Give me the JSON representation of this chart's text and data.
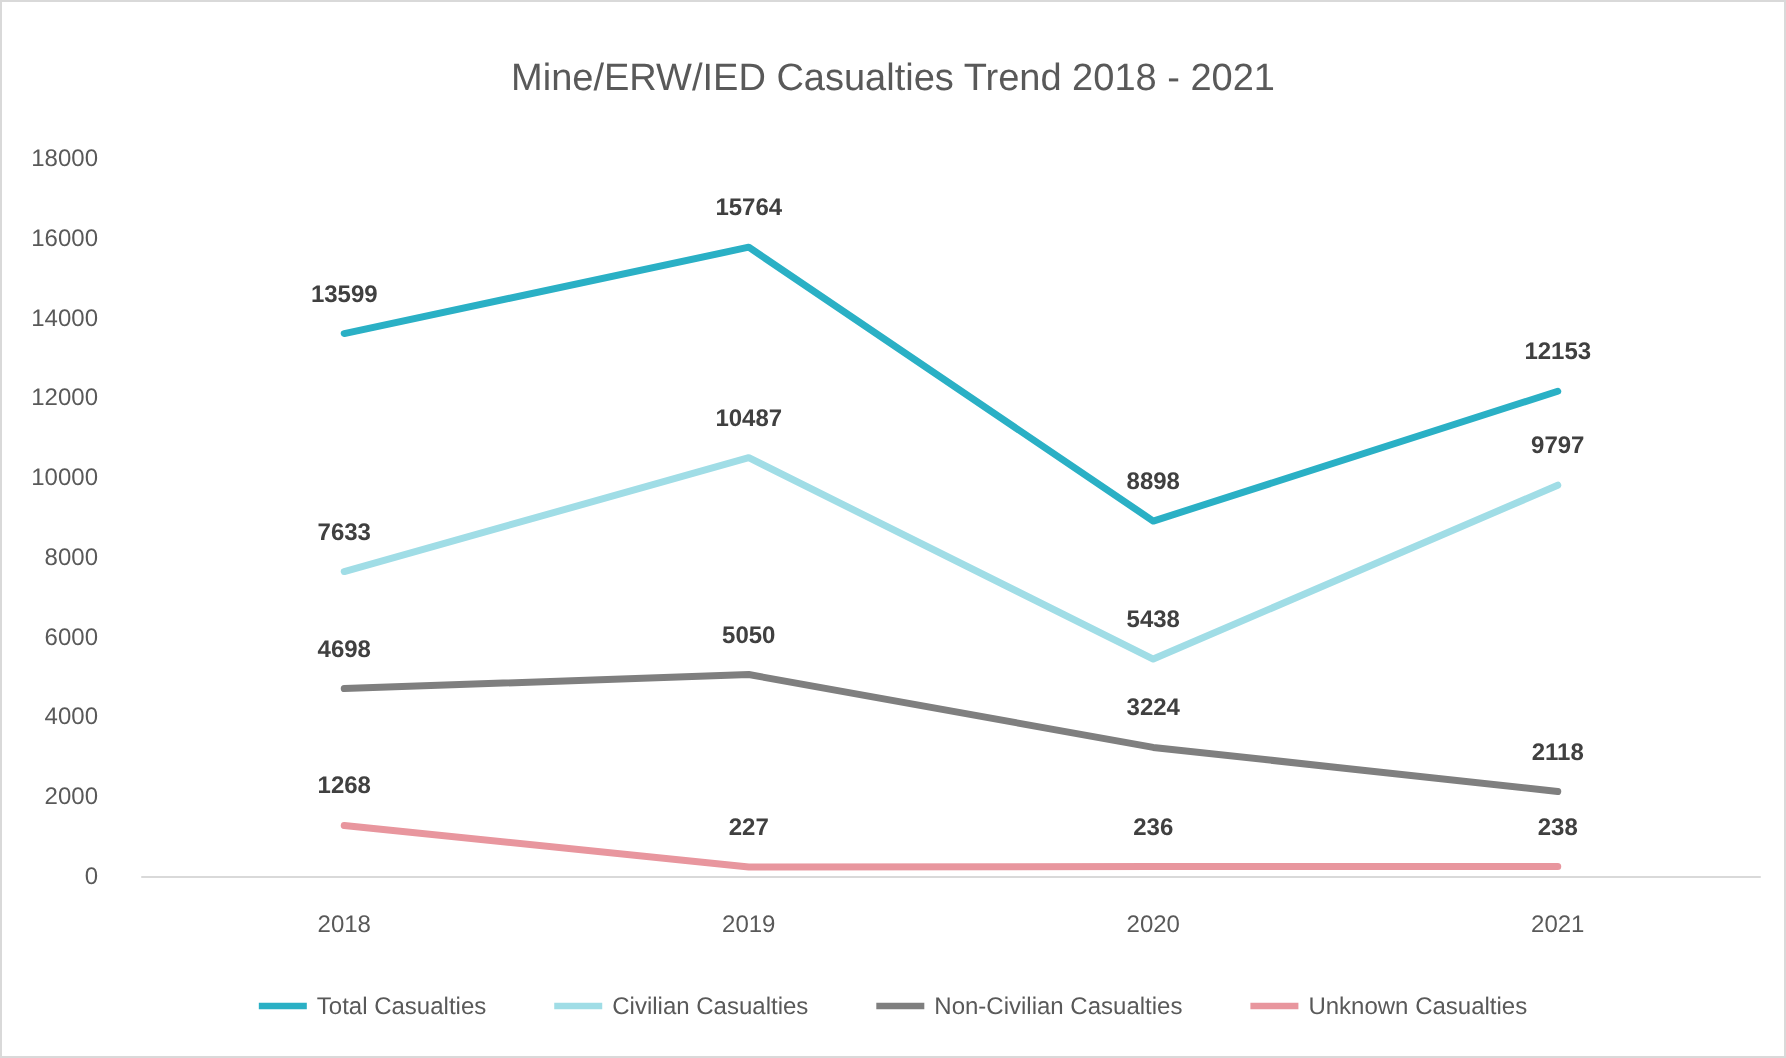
{
  "chart_data": {
    "type": "line",
    "title": "Mine/ERW/IED Casualties Trend 2018 - 2021",
    "categories": [
      "2018",
      "2019",
      "2020",
      "2021"
    ],
    "series": [
      {
        "name": "Total Casualties",
        "color": "#2ab0c5",
        "values": [
          13599,
          15764,
          8898,
          12153
        ]
      },
      {
        "name": "Civilian Casualties",
        "color": "#a0dde6",
        "values": [
          7633,
          10487,
          5438,
          9797
        ]
      },
      {
        "name": "Non-Civilian Casualties",
        "color": "#7f7f7f",
        "values": [
          4698,
          5050,
          3224,
          2118
        ]
      },
      {
        "name": "Unknown Casualties",
        "color": "#e8969e",
        "values": [
          1268,
          227,
          236,
          238
        ]
      }
    ],
    "ylim": [
      0,
      18000
    ],
    "yticks": [
      0,
      2000,
      4000,
      6000,
      8000,
      10000,
      12000,
      14000,
      16000,
      18000
    ],
    "grid": false,
    "legend": "bottom",
    "marker": "none",
    "line_style": "solid",
    "data_labels": true
  }
}
